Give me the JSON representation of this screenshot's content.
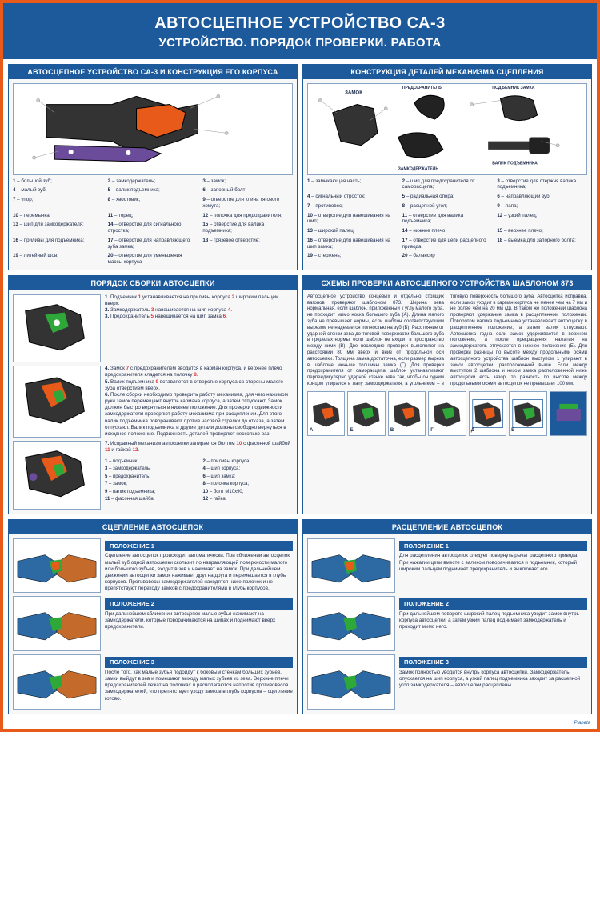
{
  "colors": {
    "frame": "#e85a1a",
    "primary": "#1c5a9c",
    "text": "#1c2a4a",
    "accent_red": "#d33",
    "accent_green": "#2fa83a",
    "accent_purple": "#6b4c9a",
    "diagram_border": "#8aa5c4",
    "background": "#f7f7f7"
  },
  "header": {
    "title": "АВТОСЦЕПНОЕ УСТРОЙСТВО СА-3",
    "subtitle": "УСТРОЙСТВО. ПОРЯДОК ПРОВЕРКИ. РАБОТА"
  },
  "panel1": {
    "title": "АВТОСЦЕПНОЕ УСТРОЙСТВО СА-3 И КОНСТРУКЦИЯ ЕГО КОРПУСА",
    "legend": [
      "1 – большой зуб;",
      "2 – замкодержатель;",
      "3 – замок;",
      "4 – малый зуб;",
      "5 – валик подъемника;",
      "6 – запорный болт;",
      "7 – упор;",
      "8 – хвостовик;",
      "9 – отверстие для клина тягового хомута;",
      "10 – перемычка;",
      "11 – торец;",
      "12 – полочка для предохранителя;",
      "13 – шип для замкодержателя;",
      "14 – отверстие для сигнального отростка;",
      "15 – отверстие для валика подъемника;",
      "16 – приливы для подъемника;",
      "17 – отверстие для направляющего зуба замка;",
      "18 – грязевое отверстие;",
      "19 – литейный шов;",
      "20 – отверстие для уменьшения массы корпуса"
    ]
  },
  "panel2": {
    "title": "КОНСТРУКЦИЯ ДЕТАЛЕЙ МЕХАНИЗМА СЦЕПЛЕНИЯ",
    "part_labels": [
      "ЗАМОК",
      "ПРЕДОХРАНИТЕЛЬ",
      "ПОДЪЕМНИК ЗАМКА",
      "ЗАМКОДЕРЖАТЕЛЬ",
      "ВАЛИК ПОДЪЕМНИКА"
    ],
    "legend": [
      "1 – замыкающая часть;",
      "2 – шип для предохранителя от саморасцепа;",
      "3 – отверстие для стержня валика подъемника;",
      "4 – сигнальный отросток;",
      "5 – радиальная опора;",
      "6 – направляющий зуб;",
      "7 – противовес;",
      "8 – расцепной угол;",
      "9 – лапа;",
      "10 – отверстие для навешивания на шип;",
      "11 – отверстие для валика подъемника;",
      "12 – узкий палец;",
      "13 – широкий палец;",
      "14 – нижнее плечо;",
      "15 – верхнее плечо;",
      "16 – отверстие для навешивания на шип замка;",
      "17 – отверстие для цепи расцепного привода;",
      "18 – выемка для запорного болта;",
      "19 – стержень;",
      "20 – балансир"
    ]
  },
  "panel3": {
    "title": "ПОРЯДОК СБОРКИ АВТОСЦЕПКИ",
    "steps": [
      "1. Подъемник 1 устанавливается на приливы корпуса 2 широким пальцем вверх.",
      "2. Замкодержатель 3 навешивается на шип корпуса 4.",
      "3. Предохранитель 5 навешивается на шип замка 6.",
      "4. Замок 7 с предохранителем вводится в карман корпуса, и верхнее плечо предохранителя кладется на полочку 8.",
      "5. Валик подъемника 9 вставляется в отверстие корпуса со стороны малого зуба отверстием вверх.",
      "6. После сборки необходимо проверить работу механизма, для чего нажимом руки замок перемещают внутрь кармана корпуса, а затем отпускают. Замок должен быстро вернуться в нижнее положение. Для проверки подвижности замкодержателя проверяют работу механизма при расцеплении. Для этого валик подъемника поворачивают против часовой стрелки до отказа, а затем отпускают. Валик подъемника и другие детали должны свободно вернуться в исходное положение. Подвижность деталей проверяют несколько раз.",
      "7. Исправный механизм автосцепки запирается болтом 10 с фасонной шайбой 11 и гайкой 12."
    ],
    "bottom_legend": [
      "1 – подъемник;",
      "2 – приливы корпуса;",
      "3 – замкодержатель;",
      "4 – шип корпуса;",
      "5 – предохранитель;",
      "6 – шип замка;",
      "7 – замок;",
      "8 – полочка корпуса;",
      "9 – валик подъемника;",
      "10 – болт М10х90;",
      "11 – фасонная шайба;",
      "12 – гайка"
    ]
  },
  "panel4": {
    "title": "СХЕМЫ ПРОВЕРКИ АВТОСЦЕПНОГО УСТРОЙСТВА ШАБЛОНОМ 873",
    "text": "Автосцепное устройство концевых и отдельно стоящих вагонов проверяют шаблоном 873. Ширина зева нормальная, если шаблон, приложенный к углу малого зуба, не проходит мимо носка большого зуба (А). Длина малого зуба не превышает нормы, если шаблон соответствующим вырезом не надевается полностью на зуб (Б). Расстояние от ударной стенки зева до тяговой поверхности большого зуба в пределах нормы, если шаблон не входит в пространство между ними (В). Две последние проверки выполняют на расстоянии 80 мм вверх и вниз от продольной оси автосцепки. Толщина замка достаточна, если размер выреза в шаблоне меньше толщины замка (Г). Для проверки предохранителя от саморасцепа шаблон устанавливают перпендикулярно ударной стенке зева так, чтобы он одним концом упирался в лапу замкодержателя, а угольником – в тяговую поверхность большого зуба.",
    "text2": "Автосцепка исправна, если замок уходит в карман корпуса не менее чем на 7 мм и не более чем на 20 мм (Д). В таком же положении шаблона проверяют удержание замка в расцепленном положении. Поворотом валика подъемника устанавливают автосцепку в расцепленное положение, а затем валик отпускают. Автосцепка годна если замок удерживается в верхнем положении, а после прекращения нажатия на замкодержатель отпускается в нижнее положение (Е). Для проверки разницы по высоте между продольными осями автосцепного устройства шаблон выступом 1 упирают в замок автосцепки, расположенной выше. Если между выступом 2 шаблона и низом замка расположенной ниже автосцепки есть зазор, то разность по высоте между продольными осями автосцепок не превышает 100 мм.",
    "dia_labels": [
      "А",
      "Б",
      "В",
      "Г",
      "Д",
      "Е"
    ]
  },
  "panel5": {
    "title": "СЦЕПЛЕНИЕ АВТОСЦЕПОК",
    "positions": [
      {
        "h": "ПОЛОЖЕНИЕ 1",
        "t": "Сцепление автосцепок происходит автоматически. При сближении автосцепок малый зуб одной автосцепки скользит по направляющей поверхности малого или большого зубьев, входит в зев и нажимает на замок. При дальнейшем движении автосцепки замок нажимает друг на друга и перемещается в глубь корпусов. Противовесы замкодержателей находятся ниже полочек и не препятствуют переходу замков с предохранителями в глубь корпусов."
      },
      {
        "h": "ПОЛОЖЕНИЕ 2",
        "t": "При дальнейшем сближении автосцепок малые зубья нажимают на замкодержатели, которые поворачиваются на шипах и поднимают вверх предохранители."
      },
      {
        "h": "ПОЛОЖЕНИЕ 3",
        "t": "После того, как малые зубья подойдут к боковым стенкам больших зубьев, замки выйдут в зев и помешают выходу малых зубьев из зева. Верхние плечи предохранителей лежат на полочках и располагаются напротив противовесов замкодержателей, что препятствует уходу замков в глубь корпусов – сцепление готово."
      }
    ]
  },
  "panel6": {
    "title": "РАСЦЕПЛЕНИЕ АВТОСЦЕПОК",
    "positions": [
      {
        "h": "ПОЛОЖЕНИЕ 1",
        "t": "Для расцепления автосцепок следует повернуть рычаг расцепного привода. При нажатии цепи вместе с валиком поворачивается и подъемник, который широким пальцем поднимает предохранитель и выключает его."
      },
      {
        "h": "ПОЛОЖЕНИЕ 2",
        "t": "При дальнейшем повороте широкий палец подъемника уводит замок внутрь корпуса автосцепки, а затем узкий палец поднимает замкодержатель и проходит мимо него."
      },
      {
        "h": "ПОЛОЖЕНИЕ 3",
        "t": "Замок полностью уводится внутрь корпуса автосцепки. Замкодержатель опускается на шип корпуса, а узкий палец подъемника заходит за расцепной угол замкодержателя – автосцепки расцеплены."
      }
    ]
  },
  "footer": "Planeta"
}
